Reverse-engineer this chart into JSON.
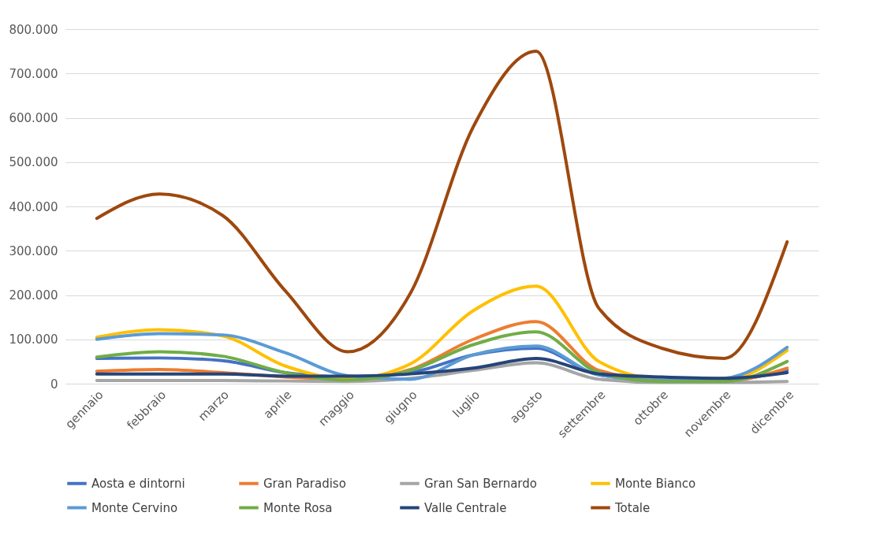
{
  "chart_data": {
    "type": "line",
    "categories": [
      "gennaio",
      "febbraio",
      "marzo",
      "aprile",
      "maggio",
      "giugno",
      "luglio",
      "agosto",
      "settembre",
      "ottobre",
      "novembre",
      "dicembre"
    ],
    "series": [
      {
        "name": "Aosta e dintorni",
        "color": "#4472c4",
        "values": [
          57000,
          58000,
          52000,
          25000,
          15000,
          25000,
          65000,
          80000,
          20000,
          8000,
          8000,
          30000
        ]
      },
      {
        "name": "Gran Paradiso",
        "color": "#ed7d31",
        "values": [
          28000,
          32000,
          25000,
          15000,
          10000,
          32000,
          100000,
          140000,
          30000,
          8000,
          6000,
          35000
        ]
      },
      {
        "name": "Gran San Bernardo",
        "color": "#a5a5a5",
        "values": [
          7000,
          7000,
          7000,
          6000,
          5000,
          12000,
          30000,
          47000,
          10000,
          3000,
          3000,
          5000
        ]
      },
      {
        "name": "Monte Bianco",
        "color": "#ffc000",
        "values": [
          105000,
          122000,
          108000,
          40000,
          10000,
          45000,
          165000,
          220000,
          50000,
          10000,
          8000,
          75000
        ]
      },
      {
        "name": "Monte Cervino",
        "color": "#5b9bd5",
        "values": [
          100000,
          113000,
          110000,
          70000,
          18000,
          10000,
          65000,
          85000,
          20000,
          8000,
          12000,
          82000
        ]
      },
      {
        "name": "Monte Rosa",
        "color": "#70ad47",
        "values": [
          60000,
          72000,
          62000,
          25000,
          8000,
          30000,
          88000,
          117000,
          25000,
          5000,
          5000,
          50000
        ]
      },
      {
        "name": "Valle Centrale",
        "color": "#264478",
        "values": [
          22000,
          22000,
          22000,
          17000,
          17000,
          22000,
          35000,
          57000,
          22000,
          15000,
          12000,
          25000
        ]
      },
      {
        "name": "Totale",
        "color": "#9e480e",
        "values": [
          373000,
          428000,
          380000,
          210000,
          72000,
          205000,
          580000,
          750000,
          170000,
          80000,
          57000,
          320000
        ]
      }
    ],
    "ylim": [
      0,
      800000
    ],
    "yticks": [
      {
        "value": 0,
        "label": "0"
      },
      {
        "value": 100000,
        "label": "100.000"
      },
      {
        "value": 200000,
        "label": "200.000"
      },
      {
        "value": 300000,
        "label": "300.000"
      },
      {
        "value": 400000,
        "label": "400.000"
      },
      {
        "value": 500000,
        "label": "500.000"
      },
      {
        "value": 600000,
        "label": "600.000"
      },
      {
        "value": 700000,
        "label": "700.000"
      },
      {
        "value": 800000,
        "label": "800.000"
      }
    ],
    "grid": "y",
    "legend": "bottom",
    "marker": "none",
    "line_style": "solid"
  }
}
